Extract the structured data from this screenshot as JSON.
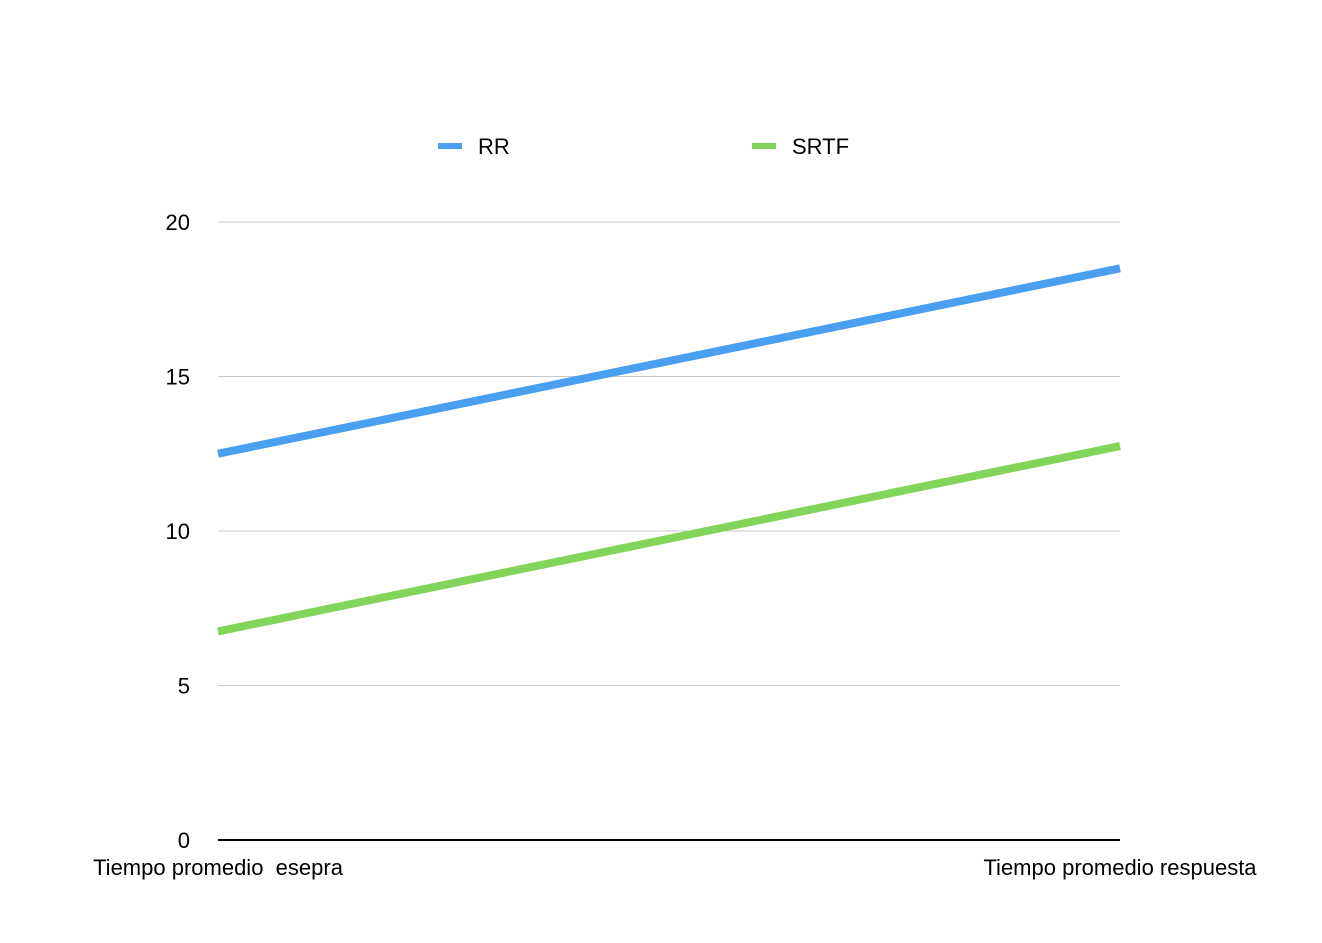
{
  "chart_data": {
    "type": "line",
    "title": "",
    "xlabel": "",
    "ylabel": "",
    "categories": [
      "Tiempo promedio  esepra",
      "Tiempo promedio respuesta"
    ],
    "series": [
      {
        "name": "RR",
        "color": "#4a9ff0",
        "values": [
          12.5,
          18.5
        ]
      },
      {
        "name": "SRTF",
        "color": "#82d45a",
        "values": [
          6.75,
          12.75
        ]
      }
    ],
    "ylim": [
      0,
      20
    ],
    "yticks": [
      0,
      5,
      10,
      15,
      20
    ],
    "grid": true,
    "legend_position": "top"
  }
}
